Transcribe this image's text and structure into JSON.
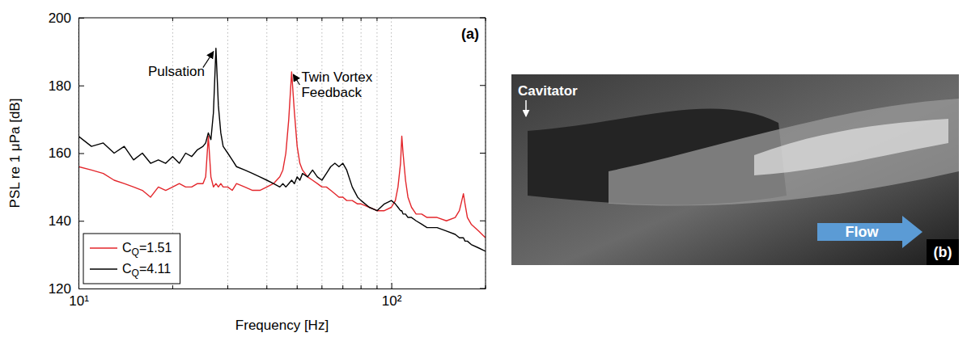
{
  "chart_data": {
    "type": "line",
    "panel_label": "(a)",
    "x_label": "Frequency [Hz]",
    "y_label": "PSL re 1 μPa [dB]",
    "log": "x",
    "grid": "x",
    "legend": "lower left",
    "xlim": [
      10,
      200
    ],
    "xticks": [
      {
        "value": 10,
        "label": "10¹"
      },
      {
        "value": 100,
        "label": "10²"
      }
    ],
    "x_minor_ticks": [
      20,
      30,
      40,
      50,
      60,
      70,
      80,
      90,
      200
    ],
    "ylim": [
      120,
      200
    ],
    "yticks": [
      120,
      140,
      160,
      180,
      200
    ],
    "x": [
      10,
      11,
      12,
      13,
      14,
      15,
      16,
      17,
      18,
      19,
      20,
      21,
      22,
      23,
      24,
      25,
      25.5,
      26,
      26.5,
      27,
      27.5,
      28,
      28.5,
      29,
      30,
      31,
      32,
      34,
      36,
      38,
      40,
      42,
      44,
      45,
      46,
      47,
      48,
      49,
      50,
      51,
      52,
      54,
      56,
      58,
      60,
      62,
      64,
      66,
      68,
      70,
      72,
      75,
      78,
      80,
      85,
      90,
      95,
      100,
      103,
      105,
      107,
      108,
      109,
      111,
      113,
      116,
      120,
      125,
      130,
      140,
      150,
      160,
      165,
      168,
      170,
      172,
      175,
      180,
      190,
      200
    ],
    "series": [
      {
        "name": "CQ=1.51",
        "color": "#e3262b",
        "line_style": "solid",
        "values": [
          156,
          155,
          154,
          152,
          151,
          150,
          149,
          147,
          150,
          149,
          150,
          151,
          150,
          150,
          151,
          151,
          153,
          165,
          153,
          150,
          151,
          150,
          151,
          150,
          150,
          149,
          151,
          150,
          149,
          149,
          150,
          151,
          153,
          155,
          160,
          170,
          184,
          172,
          162,
          157,
          155,
          153,
          152,
          151,
          150,
          150,
          149,
          148,
          147,
          147,
          146,
          146,
          145,
          145,
          144,
          143,
          143,
          144,
          146,
          150,
          157,
          165,
          160,
          152,
          147,
          144,
          142,
          142,
          141,
          141,
          140,
          141,
          143,
          146,
          148,
          145,
          141,
          139,
          137,
          135
        ]
      },
      {
        "name": "CQ=4.11",
        "color": "#000000",
        "line_style": "solid",
        "values": [
          165,
          162,
          163,
          160,
          162,
          158,
          160,
          157,
          158,
          157,
          159,
          157,
          160,
          159,
          161,
          162,
          163,
          166,
          164,
          172,
          191,
          174,
          166,
          162,
          160,
          158,
          156,
          155,
          154,
          153,
          152,
          151,
          150,
          151,
          150,
          151,
          152,
          151,
          153,
          152,
          154,
          153,
          155,
          153,
          152,
          154,
          156,
          157,
          156,
          157,
          155,
          150,
          147,
          146,
          144,
          143,
          145,
          146,
          145,
          144,
          143,
          143,
          142,
          142,
          141,
          141,
          140,
          139,
          138,
          138,
          137,
          136,
          135,
          135,
          135,
          134,
          134,
          133,
          132,
          131
        ]
      }
    ],
    "annotations": [
      {
        "text": "Pulsation",
        "x": 27.5,
        "y": 191
      },
      {
        "text": "Twin Vortex Feedback",
        "x": 48,
        "y": 184
      }
    ]
  },
  "photo": {
    "panel_label": "(b)",
    "labels": {
      "cavitator": "Cavitator",
      "flow": "Flow"
    }
  }
}
